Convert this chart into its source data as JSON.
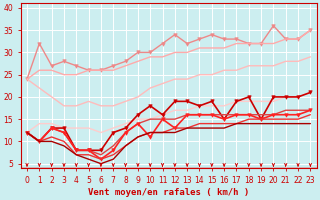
{
  "background_color": "#cceef0",
  "grid_color": "#aadddd",
  "xlabel": "Vent moyen/en rafales ( km/h )",
  "xlabel_color": "#cc0000",
  "tick_color": "#cc0000",
  "xlim": [
    -0.5,
    23.5
  ],
  "ylim": [
    4,
    41
  ],
  "yticks": [
    5,
    10,
    15,
    20,
    25,
    30,
    35,
    40
  ],
  "xticks": [
    0,
    1,
    2,
    3,
    4,
    5,
    6,
    7,
    8,
    9,
    10,
    11,
    12,
    13,
    14,
    15,
    16,
    17,
    18,
    19,
    20,
    21,
    22,
    23
  ],
  "series": [
    {
      "x": [
        0,
        1,
        2,
        3,
        4,
        5,
        6,
        7,
        8,
        9,
        10,
        11,
        12,
        13,
        14,
        15,
        16,
        17,
        18,
        19,
        20,
        21,
        22,
        23
      ],
      "y": [
        24,
        32,
        27,
        28,
        27,
        26,
        26,
        27,
        28,
        30,
        30,
        32,
        34,
        32,
        33,
        34,
        33,
        33,
        32,
        32,
        36,
        33,
        33,
        35
      ],
      "color": "#ee8888",
      "lw": 1.0,
      "marker": "v",
      "ms": 2.5
    },
    {
      "x": [
        0,
        1,
        2,
        3,
        4,
        5,
        6,
        7,
        8,
        9,
        10,
        11,
        12,
        13,
        14,
        15,
        16,
        17,
        18,
        19,
        20,
        21,
        22,
        23
      ],
      "y": [
        24,
        26,
        26,
        25,
        25,
        26,
        26,
        26,
        27,
        28,
        29,
        29,
        30,
        30,
        31,
        31,
        31,
        32,
        32,
        32,
        32,
        33,
        33,
        35
      ],
      "color": "#ffaaaa",
      "lw": 1.0,
      "marker": null,
      "ms": 0
    },
    {
      "x": [
        0,
        1,
        2,
        3,
        4,
        5,
        6,
        7,
        8,
        9,
        10,
        11,
        12,
        13,
        14,
        15,
        16,
        17,
        18,
        19,
        20,
        21,
        22,
        23
      ],
      "y": [
        24,
        22,
        20,
        18,
        18,
        19,
        18,
        18,
        19,
        20,
        22,
        23,
        24,
        24,
        25,
        25,
        26,
        26,
        27,
        27,
        27,
        28,
        28,
        29
      ],
      "color": "#ffbbbb",
      "lw": 1.0,
      "marker": null,
      "ms": 0
    },
    {
      "x": [
        0,
        1,
        2,
        3,
        4,
        5,
        6,
        7,
        8,
        9,
        10,
        11,
        12,
        13,
        14,
        15,
        16,
        17,
        18,
        19,
        20,
        21,
        22,
        23
      ],
      "y": [
        12,
        14,
        14,
        13,
        13,
        13,
        12,
        13,
        14,
        15,
        15,
        16,
        17,
        17,
        18,
        18,
        18,
        19,
        19,
        19,
        19,
        20,
        20,
        21
      ],
      "color": "#ffcccc",
      "lw": 1.0,
      "marker": null,
      "ms": 0
    },
    {
      "x": [
        0,
        1,
        2,
        3,
        4,
        5,
        6,
        7,
        8,
        9,
        10,
        11,
        12,
        13,
        14,
        15,
        16,
        17,
        18,
        19,
        20,
        21,
        22,
        23
      ],
      "y": [
        12,
        10,
        13,
        13,
        8,
        8,
        8,
        12,
        13,
        16,
        18,
        16,
        19,
        19,
        18,
        19,
        15,
        19,
        20,
        15,
        20,
        20,
        20,
        21
      ],
      "color": "#cc0000",
      "lw": 1.2,
      "marker": "v",
      "ms": 2.5
    },
    {
      "x": [
        0,
        1,
        2,
        3,
        4,
        5,
        6,
        7,
        8,
        9,
        10,
        11,
        12,
        13,
        14,
        15,
        16,
        17,
        18,
        19,
        20,
        21,
        22,
        23
      ],
      "y": [
        12,
        10,
        13,
        12,
        8,
        8,
        7,
        9,
        12,
        14,
        15,
        15,
        15,
        16,
        16,
        16,
        16,
        16,
        16,
        16,
        16,
        17,
        17,
        17
      ],
      "color": "#dd4444",
      "lw": 1.0,
      "marker": null,
      "ms": 0
    },
    {
      "x": [
        0,
        1,
        2,
        3,
        4,
        5,
        6,
        7,
        8,
        9,
        10,
        11,
        12,
        13,
        14,
        15,
        16,
        17,
        18,
        19,
        20,
        21,
        22,
        23
      ],
      "y": [
        12,
        10,
        13,
        12,
        8,
        8,
        6,
        8,
        12,
        14,
        11,
        15,
        13,
        16,
        16,
        16,
        15,
        16,
        16,
        15,
        16,
        16,
        16,
        17
      ],
      "color": "#ff2222",
      "lw": 1.2,
      "marker": "v",
      "ms": 2.5
    },
    {
      "x": [
        0,
        1,
        2,
        3,
        4,
        5,
        6,
        7,
        8,
        9,
        10,
        11,
        12,
        13,
        14,
        15,
        16,
        17,
        18,
        19,
        20,
        21,
        22,
        23
      ],
      "y": [
        12,
        10,
        11,
        10,
        7,
        7,
        6,
        7,
        9,
        11,
        12,
        12,
        13,
        13,
        14,
        14,
        14,
        14,
        15,
        15,
        15,
        15,
        15,
        16
      ],
      "color": "#ee3333",
      "lw": 1.0,
      "marker": null,
      "ms": 0
    },
    {
      "x": [
        0,
        1,
        2,
        3,
        4,
        5,
        6,
        7,
        8,
        9,
        10,
        11,
        12,
        13,
        14,
        15,
        16,
        17,
        18,
        19,
        20,
        21,
        22,
        23
      ],
      "y": [
        12,
        10,
        10,
        9,
        7,
        6,
        5,
        6,
        9,
        11,
        12,
        12,
        12,
        13,
        13,
        13,
        13,
        14,
        14,
        14,
        14,
        14,
        14,
        14
      ],
      "color": "#aa0000",
      "lw": 1.0,
      "marker": null,
      "ms": 0
    }
  ],
  "arrow_color": "#cc0000",
  "xlabel_fontsize": 6.5,
  "tick_fontsize": 5.5
}
